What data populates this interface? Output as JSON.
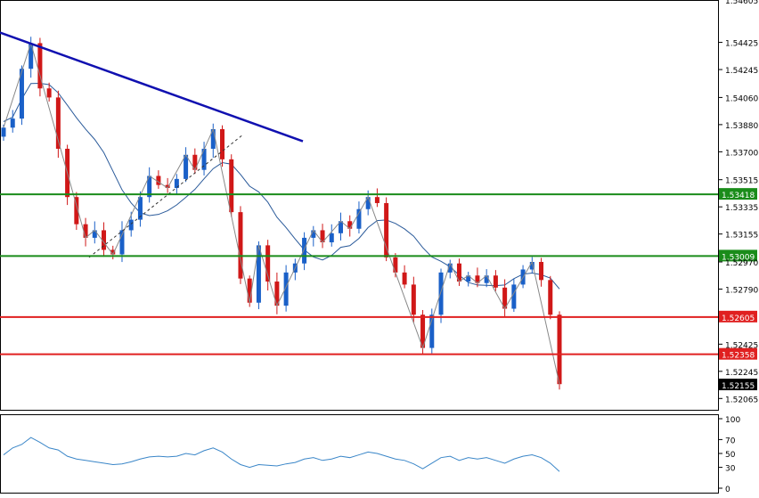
{
  "chart_data": [
    {
      "type": "candlestick",
      "title": "",
      "y_ticks": [
        "1.54425",
        "1.54245",
        "1.54060",
        "1.53880",
        "1.53700",
        "1.53515",
        "1.53335",
        "1.53155",
        "1.52970",
        "1.52790",
        "1.52425",
        "1.52245",
        "1.52065"
      ],
      "y_top_partial_tick": "1.54605",
      "ylim": [
        1.5199,
        1.547
      ],
      "series": [
        {
          "values_close": [
            1.5386,
            1.5392,
            1.5425,
            1.5442,
            1.5412,
            1.5406,
            1.5372,
            1.534,
            1.5322,
            1.5313,
            1.5318,
            1.5305,
            1.5302,
            1.5318,
            1.5325,
            1.534,
            1.5354,
            1.5348,
            1.5346,
            1.5352,
            1.5368,
            1.5358,
            1.5372,
            1.5385,
            1.5365,
            1.533,
            1.5286,
            1.527,
            1.5308,
            1.5284,
            1.5268,
            1.529,
            1.5296,
            1.5313,
            1.5318,
            1.531,
            1.5316,
            1.5324,
            1.5319,
            1.5332,
            1.534,
            1.5336,
            1.53,
            1.529,
            1.5282,
            1.5262,
            1.524,
            1.5262,
            1.529,
            1.5296,
            1.5284,
            1.5288,
            1.5283,
            1.5288,
            1.528,
            1.5266,
            1.5282,
            1.5292,
            1.5297,
            1.5285,
            1.5262,
            1.5216
          ]
        }
      ]
    },
    {
      "type": "line",
      "title": "",
      "y_ticks": [
        "100",
        "70",
        "50",
        "30",
        "0"
      ],
      "ylim": [
        0,
        100
      ],
      "series": [
        {
          "values": [
            48,
            58,
            63,
            73,
            66,
            58,
            55,
            46,
            42,
            40,
            38,
            36,
            34,
            35,
            38,
            42,
            45,
            46,
            45,
            46,
            50,
            48,
            54,
            58,
            52,
            42,
            34,
            30,
            34,
            33,
            32,
            35,
            37,
            42,
            44,
            40,
            42,
            46,
            44,
            48,
            52,
            50,
            46,
            42,
            40,
            35,
            28,
            36,
            44,
            46,
            40,
            44,
            42,
            44,
            40,
            36,
            42,
            46,
            48,
            44,
            36,
            24
          ]
        }
      ]
    }
  ],
  "price_markers": {
    "horizontal_levels": [
      {
        "label": "1.53418",
        "value": 1.53418,
        "color": "#1a8c1a"
      },
      {
        "label": "1.53009",
        "value": 1.53009,
        "color": "#1a8c1a"
      },
      {
        "label": "1.52605",
        "value": 1.52605,
        "color": "#e02020"
      },
      {
        "label": "1.52358",
        "value": 1.52358,
        "color": "#e02020"
      }
    ],
    "current_price": {
      "label": "1.52155",
      "value": 1.52155,
      "color": "#000000"
    }
  },
  "colors": {
    "bull": "#1a60c8",
    "bear": "#d01818",
    "trendline": "#1010b0",
    "moving_average": "#2a5a9a",
    "oscillator": "#3a86c8",
    "zigzag": "#888888"
  }
}
